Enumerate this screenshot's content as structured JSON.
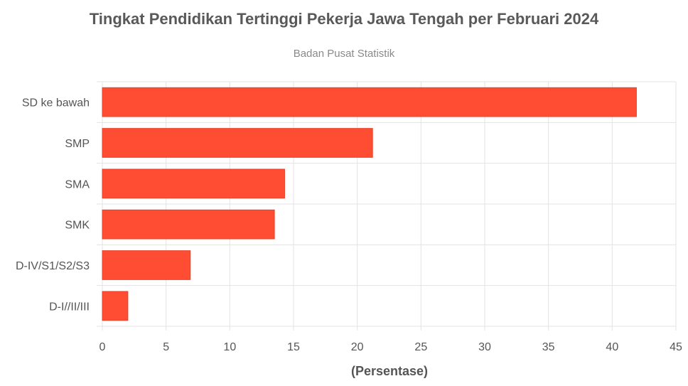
{
  "chart_data": {
    "type": "bar",
    "orientation": "horizontal",
    "title": "Tingkat Pendidikan Tertinggi Pekerja Jawa Tengah per Februari 2024",
    "subtitle": "Badan Pusat Statistik",
    "categories": [
      "SD ke bawah",
      "SMP",
      "SMA",
      "SMK",
      "D-IV/S1/S2/S3",
      "D-I//II/III"
    ],
    "values": [
      41.9,
      21.2,
      14.3,
      13.5,
      6.9,
      2.0
    ],
    "xlabel": "(Persentase)",
    "ylabel": "",
    "xlim": [
      0,
      45
    ],
    "xticks": [
      0,
      5,
      10,
      15,
      20,
      25,
      30,
      35,
      40,
      45
    ],
    "grid": true,
    "bar_color": "#ff4d33",
    "bar_border_color": "#e8412a"
  }
}
